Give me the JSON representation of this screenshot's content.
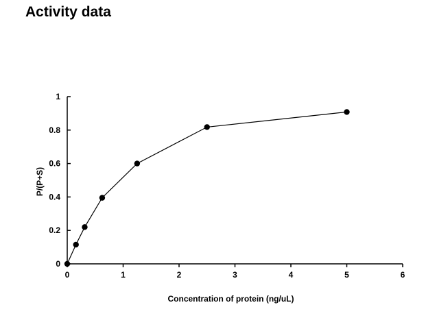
{
  "page": {
    "title": "Activity data"
  },
  "chart_data": {
    "type": "line",
    "title": "Activity data",
    "xlabel": "Concentration of protein (ng/uL)",
    "ylabel": "P/(P+S)",
    "xlim": [
      0,
      6
    ],
    "ylim": [
      0,
      1
    ],
    "x_ticks": [
      0,
      1,
      2,
      3,
      4,
      5,
      6
    ],
    "y_ticks": [
      0,
      0.2,
      0.4,
      0.6,
      0.8,
      1
    ],
    "x_tick_labels": [
      "0",
      "1",
      "2",
      "3",
      "4",
      "5",
      "6"
    ],
    "y_tick_labels": [
      "0",
      "0.2",
      "0.4",
      "0.6",
      "0.8",
      "1"
    ],
    "grid": false,
    "legend": "none",
    "series": [
      {
        "color": "#000000",
        "marker": "circle",
        "x": [
          0,
          0.156,
          0.3125,
          0.625,
          1.25,
          2.5,
          5
        ],
        "y": [
          0,
          0.115,
          0.22,
          0.395,
          0.6,
          0.818,
          0.908
        ]
      }
    ]
  }
}
